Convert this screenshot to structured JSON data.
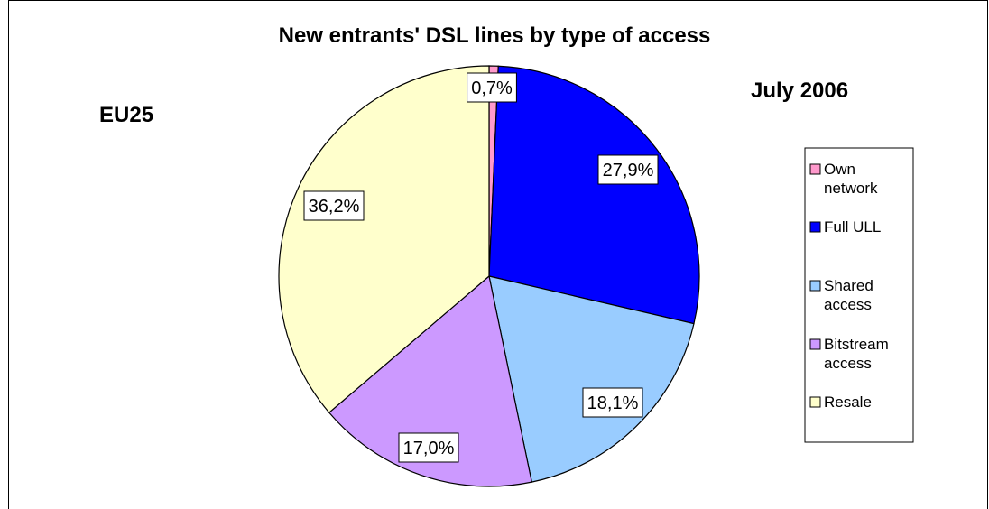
{
  "chart_data": {
    "type": "pie",
    "title": "New entrants' DSL lines by type of access",
    "region_label": "EU25",
    "date_label": "July 2006",
    "categories": [
      "Own network",
      "Full ULL",
      "Shared access",
      "Bitstream access",
      "Resale"
    ],
    "legend_lines": [
      [
        "Own",
        "network"
      ],
      [
        "Full ULL"
      ],
      [
        "Shared",
        "access"
      ],
      [
        "Bitstream",
        "access"
      ],
      [
        "Resale"
      ]
    ],
    "values": [
      0.7,
      27.9,
      18.1,
      17.0,
      36.2
    ],
    "data_labels": [
      "0,7%",
      "27,9%",
      "18,1%",
      "17,0%",
      "36,2%"
    ],
    "colors": [
      "#ff99cc",
      "#0000ff",
      "#99ccff",
      "#cc99ff",
      "#ffffcc"
    ],
    "start_angle_deg": 0,
    "direction": "clockwise",
    "legend_position": "right"
  }
}
